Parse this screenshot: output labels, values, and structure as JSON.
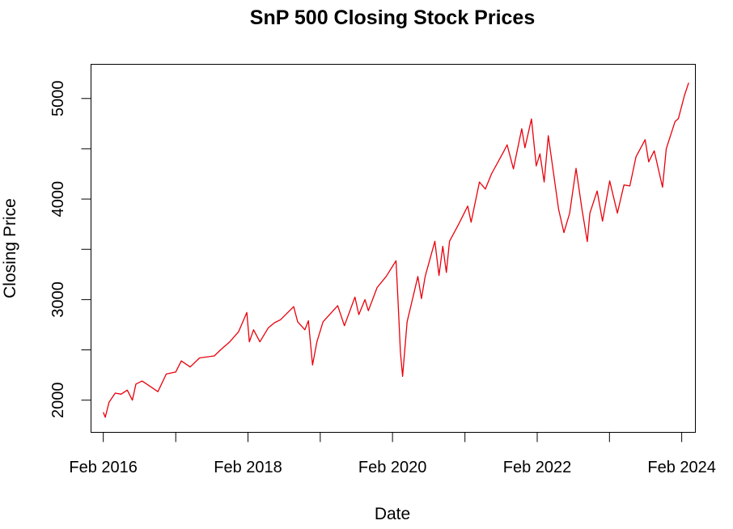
{
  "chart_data": {
    "type": "line",
    "title": "SnP 500 Closing Stock Prices",
    "xlabel": "Date",
    "ylabel": "Closing Price",
    "xlim": [
      "2015-12-01",
      "2024-04-10"
    ],
    "ylim": [
      1680,
      5340
    ],
    "x_ticks": [
      {
        "date": "2016-02-01",
        "label": "Feb 2016"
      },
      {
        "date": "2017-02-01",
        "label": ""
      },
      {
        "date": "2018-02-01",
        "label": "Feb 2018"
      },
      {
        "date": "2019-02-01",
        "label": ""
      },
      {
        "date": "2020-02-01",
        "label": "Feb 2020"
      },
      {
        "date": "2021-02-01",
        "label": ""
      },
      {
        "date": "2022-02-01",
        "label": "Feb 2022"
      },
      {
        "date": "2023-02-01",
        "label": ""
      },
      {
        "date": "2024-02-01",
        "label": "Feb 2024"
      }
    ],
    "y_ticks": [
      {
        "value": 2000,
        "label": "2000"
      },
      {
        "value": 2500,
        "label": ""
      },
      {
        "value": 3000,
        "label": "3000"
      },
      {
        "value": 3500,
        "label": ""
      },
      {
        "value": 4000,
        "label": "4000"
      },
      {
        "value": 4500,
        "label": ""
      },
      {
        "value": 5000,
        "label": "5000"
      }
    ],
    "grid": false,
    "color": "#e8000b",
    "series": [
      {
        "points": [
          [
            "2016-02-01",
            1880
          ],
          [
            "2016-02-11",
            1830
          ],
          [
            "2016-03-01",
            1980
          ],
          [
            "2016-04-01",
            2070
          ],
          [
            "2016-05-01",
            2060
          ],
          [
            "2016-06-01",
            2100
          ],
          [
            "2016-06-27",
            2000
          ],
          [
            "2016-07-15",
            2160
          ],
          [
            "2016-08-15",
            2190
          ],
          [
            "2016-09-15",
            2150
          ],
          [
            "2016-11-03",
            2085
          ],
          [
            "2016-12-15",
            2260
          ],
          [
            "2017-02-01",
            2280
          ],
          [
            "2017-03-01",
            2390
          ],
          [
            "2017-04-15",
            2330
          ],
          [
            "2017-06-01",
            2420
          ],
          [
            "2017-08-15",
            2440
          ],
          [
            "2017-09-15",
            2500
          ],
          [
            "2017-11-01",
            2580
          ],
          [
            "2017-12-15",
            2680
          ],
          [
            "2018-01-26",
            2872
          ],
          [
            "2018-02-08",
            2580
          ],
          [
            "2018-03-01",
            2700
          ],
          [
            "2018-04-02",
            2580
          ],
          [
            "2018-05-15",
            2720
          ],
          [
            "2018-06-15",
            2770
          ],
          [
            "2018-07-15",
            2800
          ],
          [
            "2018-09-20",
            2930
          ],
          [
            "2018-10-10",
            2780
          ],
          [
            "2018-11-15",
            2700
          ],
          [
            "2018-12-03",
            2790
          ],
          [
            "2018-12-24",
            2350
          ],
          [
            "2019-01-15",
            2580
          ],
          [
            "2019-02-15",
            2780
          ],
          [
            "2019-04-30",
            2940
          ],
          [
            "2019-06-03",
            2740
          ],
          [
            "2019-07-26",
            3025
          ],
          [
            "2019-08-15",
            2850
          ],
          [
            "2019-09-15",
            3000
          ],
          [
            "2019-10-02",
            2890
          ],
          [
            "2019-11-15",
            3120
          ],
          [
            "2019-12-31",
            3230
          ],
          [
            "2020-02-19",
            3386
          ],
          [
            "2020-03-01",
            2950
          ],
          [
            "2020-03-12",
            2480
          ],
          [
            "2020-03-23",
            2237
          ],
          [
            "2020-04-15",
            2780
          ],
          [
            "2020-06-08",
            3230
          ],
          [
            "2020-06-26",
            3010
          ],
          [
            "2020-07-15",
            3230
          ],
          [
            "2020-09-02",
            3580
          ],
          [
            "2020-09-23",
            3240
          ],
          [
            "2020-10-12",
            3530
          ],
          [
            "2020-10-30",
            3270
          ],
          [
            "2020-11-15",
            3580
          ],
          [
            "2020-12-31",
            3750
          ],
          [
            "2021-02-15",
            3930
          ],
          [
            "2021-03-04",
            3770
          ],
          [
            "2021-04-15",
            4170
          ],
          [
            "2021-05-15",
            4100
          ],
          [
            "2021-06-15",
            4250
          ],
          [
            "2021-08-15",
            4470
          ],
          [
            "2021-09-02",
            4540
          ],
          [
            "2021-10-04",
            4300
          ],
          [
            "2021-11-15",
            4700
          ],
          [
            "2021-12-01",
            4510
          ],
          [
            "2022-01-03",
            4797
          ],
          [
            "2022-01-27",
            4330
          ],
          [
            "2022-02-15",
            4450
          ],
          [
            "2022-03-08",
            4170
          ],
          [
            "2022-03-29",
            4630
          ],
          [
            "2022-05-20",
            3900
          ],
          [
            "2022-06-16",
            3666
          ],
          [
            "2022-07-15",
            3860
          ],
          [
            "2022-08-16",
            4305
          ],
          [
            "2022-09-15",
            3900
          ],
          [
            "2022-10-12",
            3577
          ],
          [
            "2022-10-25",
            3860
          ],
          [
            "2022-12-01",
            4080
          ],
          [
            "2022-12-28",
            3780
          ],
          [
            "2023-02-02",
            4180
          ],
          [
            "2023-03-13",
            3860
          ],
          [
            "2023-04-15",
            4140
          ],
          [
            "2023-05-15",
            4130
          ],
          [
            "2023-06-15",
            4420
          ],
          [
            "2023-07-31",
            4590
          ],
          [
            "2023-08-18",
            4370
          ],
          [
            "2023-09-15",
            4480
          ],
          [
            "2023-10-27",
            4117
          ],
          [
            "2023-11-15",
            4500
          ],
          [
            "2023-12-29",
            4770
          ],
          [
            "2024-01-15",
            4800
          ],
          [
            "2024-02-15",
            5030
          ],
          [
            "2024-03-07",
            5157
          ]
        ]
      }
    ]
  }
}
